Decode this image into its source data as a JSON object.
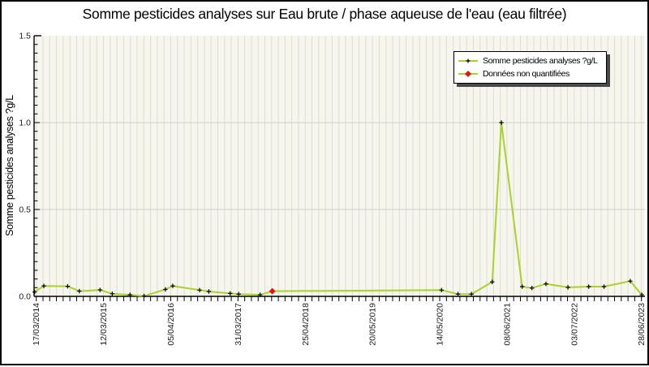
{
  "title": "Somme pesticides analyses sur Eau brute / phase aqueuse de l'eau (eau filtrée)",
  "legend": {
    "items": [
      {
        "label": "Somme pesticides analyses ?g/L",
        "marker": "black-plus-on-green-line"
      },
      {
        "label": "Données non quantifiées",
        "marker": "red-diamond-on-green-line"
      }
    ]
  },
  "colors": {
    "line": "#a8d32a",
    "point_marker": "#000000",
    "non_quantified": "#e51414",
    "plot_bg": "#f6f6ec",
    "grid_vertical": "#dcdcdc",
    "grid_horizontal": "#cdcdcd",
    "axis": "#000000",
    "legend_shadow": "#4a4a4a",
    "tick_label": "#1a1a1a"
  },
  "chart_data": {
    "type": "line",
    "title": "Somme pesticides analyses sur Eau brute / phase aqueuse de l'eau (eau filtrée)",
    "xlabel": "",
    "ylabel": "Somme pesticides analyses ?g/L",
    "ylim": [
      0,
      1.5
    ],
    "y_major_ticks": [
      "0.0",
      "0.5",
      "1.0",
      "1.5"
    ],
    "y_minor_step": 0.05,
    "x_tick_labels": [
      "17/03/2014",
      "12/03/2015",
      "05/04/2016",
      "31/03/2017",
      "25/04/2018",
      "20/05/2019",
      "14/05/2020",
      "08/06/2021",
      "03/07/2022",
      "28/06/2023"
    ],
    "x_minor_ticks_per_major": 10,
    "x_minor_tick_count": 91,
    "grid": "vertical minor lines + horizontal major lines at 0.5 and 1.0",
    "legend_position": "top-right",
    "series": [
      {
        "name": "Somme pesticides analyses ?g/L",
        "marker": "plus",
        "points": [
          {
            "x": 0.001,
            "y": 0.025
          },
          {
            "x": 0.016,
            "y": 0.06
          },
          {
            "x": 0.055,
            "y": 0.058
          },
          {
            "x": 0.074,
            "y": 0.03
          },
          {
            "x": 0.108,
            "y": 0.037
          },
          {
            "x": 0.128,
            "y": 0.015
          },
          {
            "x": 0.157,
            "y": 0.009
          },
          {
            "x": 0.18,
            "y": 0.002
          },
          {
            "x": 0.215,
            "y": 0.04
          },
          {
            "x": 0.227,
            "y": 0.06
          },
          {
            "x": 0.271,
            "y": 0.036
          },
          {
            "x": 0.286,
            "y": 0.028
          },
          {
            "x": 0.321,
            "y": 0.017
          },
          {
            "x": 0.335,
            "y": 0.013
          },
          {
            "x": 0.37,
            "y": 0.009
          },
          {
            "x": 0.39,
            "y": 0.03,
            "non_quantifie": true
          },
          {
            "x": 0.667,
            "y": 0.036
          },
          {
            "x": 0.694,
            "y": 0.013
          },
          {
            "x": 0.716,
            "y": 0.013
          },
          {
            "x": 0.75,
            "y": 0.083
          },
          {
            "x": 0.765,
            "y": 1.0
          },
          {
            "x": 0.799,
            "y": 0.056
          },
          {
            "x": 0.815,
            "y": 0.048
          },
          {
            "x": 0.838,
            "y": 0.072
          },
          {
            "x": 0.874,
            "y": 0.052
          },
          {
            "x": 0.908,
            "y": 0.056
          },
          {
            "x": 0.933,
            "y": 0.056
          },
          {
            "x": 0.976,
            "y": 0.088
          },
          {
            "x": 0.995,
            "y": 0.009
          }
        ]
      }
    ]
  }
}
